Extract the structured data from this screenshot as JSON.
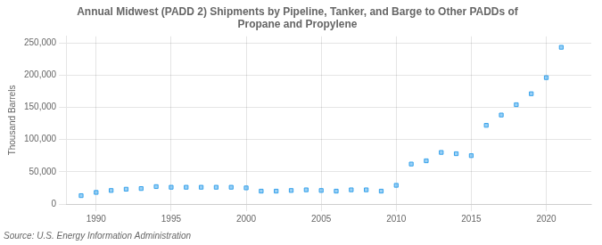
{
  "chart_data": {
    "type": "scatter",
    "title": "Annual Midwest (PADD 2) Shipments by Pipeline, Tanker, and Barge to Other PADDs of\nPropane and Propylene",
    "ylabel": "Thousand Barrels",
    "source": "Source: U.S. Energy Information Administration",
    "x": [
      1989,
      1990,
      1991,
      1992,
      1993,
      1994,
      1995,
      1996,
      1997,
      1998,
      1999,
      2000,
      2001,
      2002,
      2003,
      2004,
      2005,
      2006,
      2007,
      2008,
      2009,
      2010,
      2011,
      2012,
      2013,
      2014,
      2015,
      2016,
      2017,
      2018,
      2019,
      2020,
      2021
    ],
    "values": [
      13000,
      18000,
      21000,
      23000,
      24000,
      27000,
      26000,
      26000,
      26000,
      26000,
      26000,
      25000,
      20000,
      20000,
      21000,
      22000,
      21000,
      20000,
      22000,
      22000,
      20000,
      29000,
      62000,
      67000,
      80000,
      78000,
      75000,
      122000,
      138000,
      154000,
      171000,
      196000,
      243000
    ],
    "xlim": [
      1988,
      2023
    ],
    "ylim": [
      0,
      260000
    ],
    "xticks": [
      1990,
      1995,
      2000,
      2005,
      2010,
      2015,
      2020
    ],
    "yticks": [
      0,
      {
        "value": 50000,
        "label": "50,000"
      },
      {
        "value": 100000,
        "label": "100,000"
      },
      {
        "value": 150000,
        "label": "150,000"
      },
      {
        "value": 200000,
        "label": "200,000"
      },
      {
        "value": 250000,
        "label": "250,000"
      }
    ],
    "marker": "square",
    "grid": true
  }
}
